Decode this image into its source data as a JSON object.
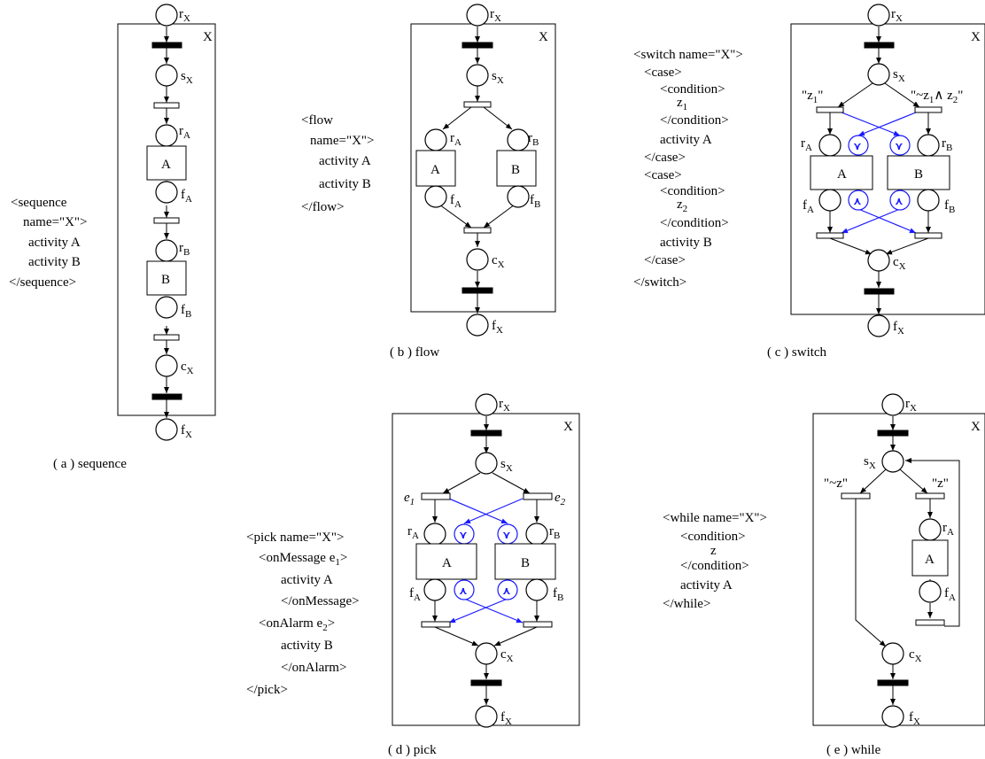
{
  "panels": {
    "a": {
      "caption": "( a )  sequence",
      "box_label": "X",
      "code": [
        "<sequence",
        "name=\"X\">",
        "activity A",
        "activity B",
        "</sequence>"
      ],
      "places": {
        "rX": "r",
        "sX": "s",
        "rA": "r",
        "fA": "f",
        "rB": "r",
        "fB": "f",
        "cX": "c",
        "fX": "f"
      },
      "activities": [
        "A",
        "B"
      ]
    },
    "b": {
      "caption": "( b )  flow",
      "box_label": "X",
      "code": [
        "<flow",
        "name=\"X\">",
        "activity A",
        "activity B",
        "</flow>"
      ],
      "activities": [
        "A",
        "B"
      ]
    },
    "c": {
      "caption": "( c )  switch",
      "box_label": "X",
      "code": [
        "<switch name=\"X\">",
        "<case>",
        "<condition>",
        "z",
        "</condition>",
        "activity A",
        "</case>",
        "<case>",
        "<condition>",
        "z",
        "</condition>",
        "activity B",
        "</case>",
        "</switch>"
      ],
      "guards": [
        "\"z₁\"",
        "\"~z₁∧z₂\""
      ],
      "activities": [
        "A",
        "B"
      ]
    },
    "d": {
      "caption": "( d )  pick",
      "box_label": "X",
      "code": [
        "<pick name=\"X\">",
        "<onMessage e",
        ">",
        "activity A",
        "</onMessage>",
        "<onAlarm  e",
        ">",
        "activity B",
        "</onAlarm>",
        "</pick>"
      ],
      "events": [
        "e",
        "e"
      ],
      "activities": [
        "A",
        "B"
      ]
    },
    "e": {
      "caption": "( e )  while",
      "box_label": "X",
      "code": [
        "<while name=\"X\">",
        "<condition>",
        "z",
        "</condition>",
        "activity A",
        "</while>"
      ],
      "guards": [
        "\"~z\"",
        "\"z\""
      ],
      "activities": [
        "A"
      ]
    }
  },
  "subscripts": {
    "X": "X",
    "A": "A",
    "B": "B",
    "one": "1",
    "two": "2"
  },
  "or_symbol": "⋎",
  "and_symbol": "⋏",
  "colors": {
    "accent": "#1a1aff"
  }
}
